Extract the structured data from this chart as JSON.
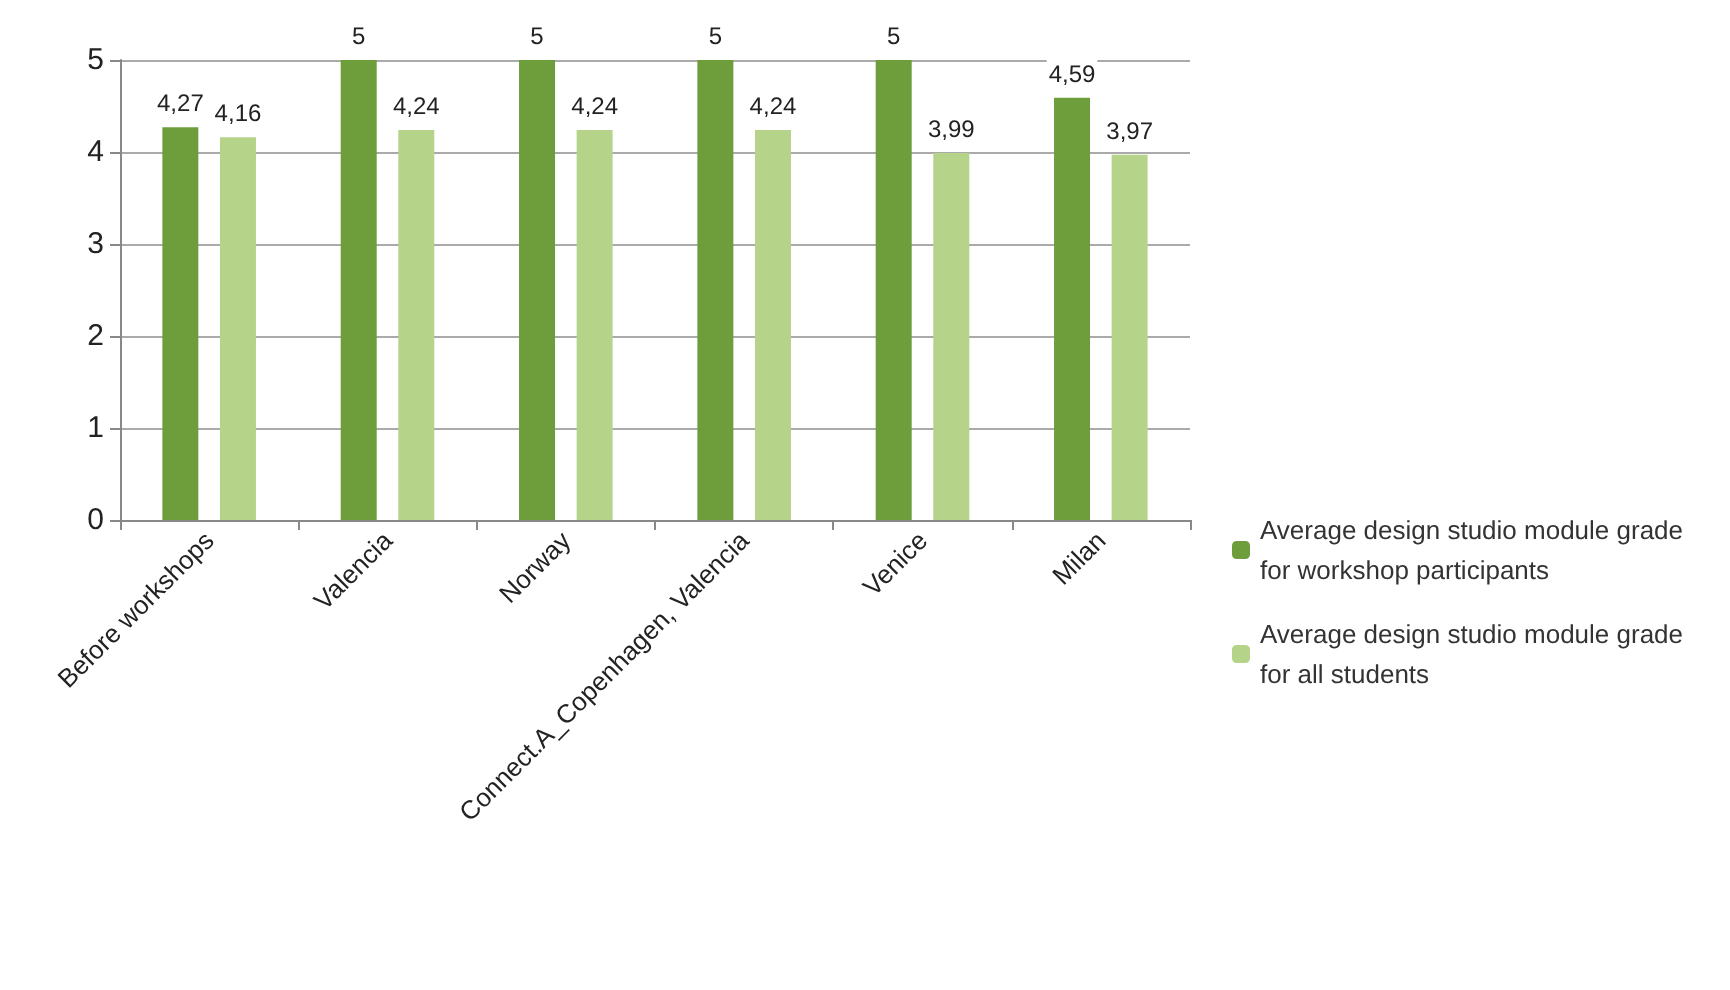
{
  "chart_data": {
    "type": "bar",
    "categories": [
      "Before workshops",
      "Valencia",
      "Norway",
      "Connect.A_Copenhagen, Valencia",
      "Venice",
      "Milan"
    ],
    "series": [
      {
        "name": "Average design studio module grade for workshop participants",
        "color": "#6e9e3c",
        "values": [
          4.27,
          5,
          5,
          5,
          5,
          4.59
        ],
        "value_labels": [
          "4,27",
          "5",
          "5",
          "5",
          "5",
          "4,59"
        ]
      },
      {
        "name": "Average design studio module grade for all students",
        "color": "#b5d48a",
        "values": [
          4.16,
          4.24,
          4.24,
          4.24,
          3.99,
          3.97
        ],
        "value_labels": [
          "4,16",
          "4,24",
          "4,24",
          "4,24",
          "3,99",
          "3,97"
        ]
      }
    ],
    "ylim": [
      0,
      5
    ],
    "yticks": [
      0,
      1,
      2,
      3,
      4,
      5
    ],
    "grid": "y",
    "legend": "right"
  }
}
